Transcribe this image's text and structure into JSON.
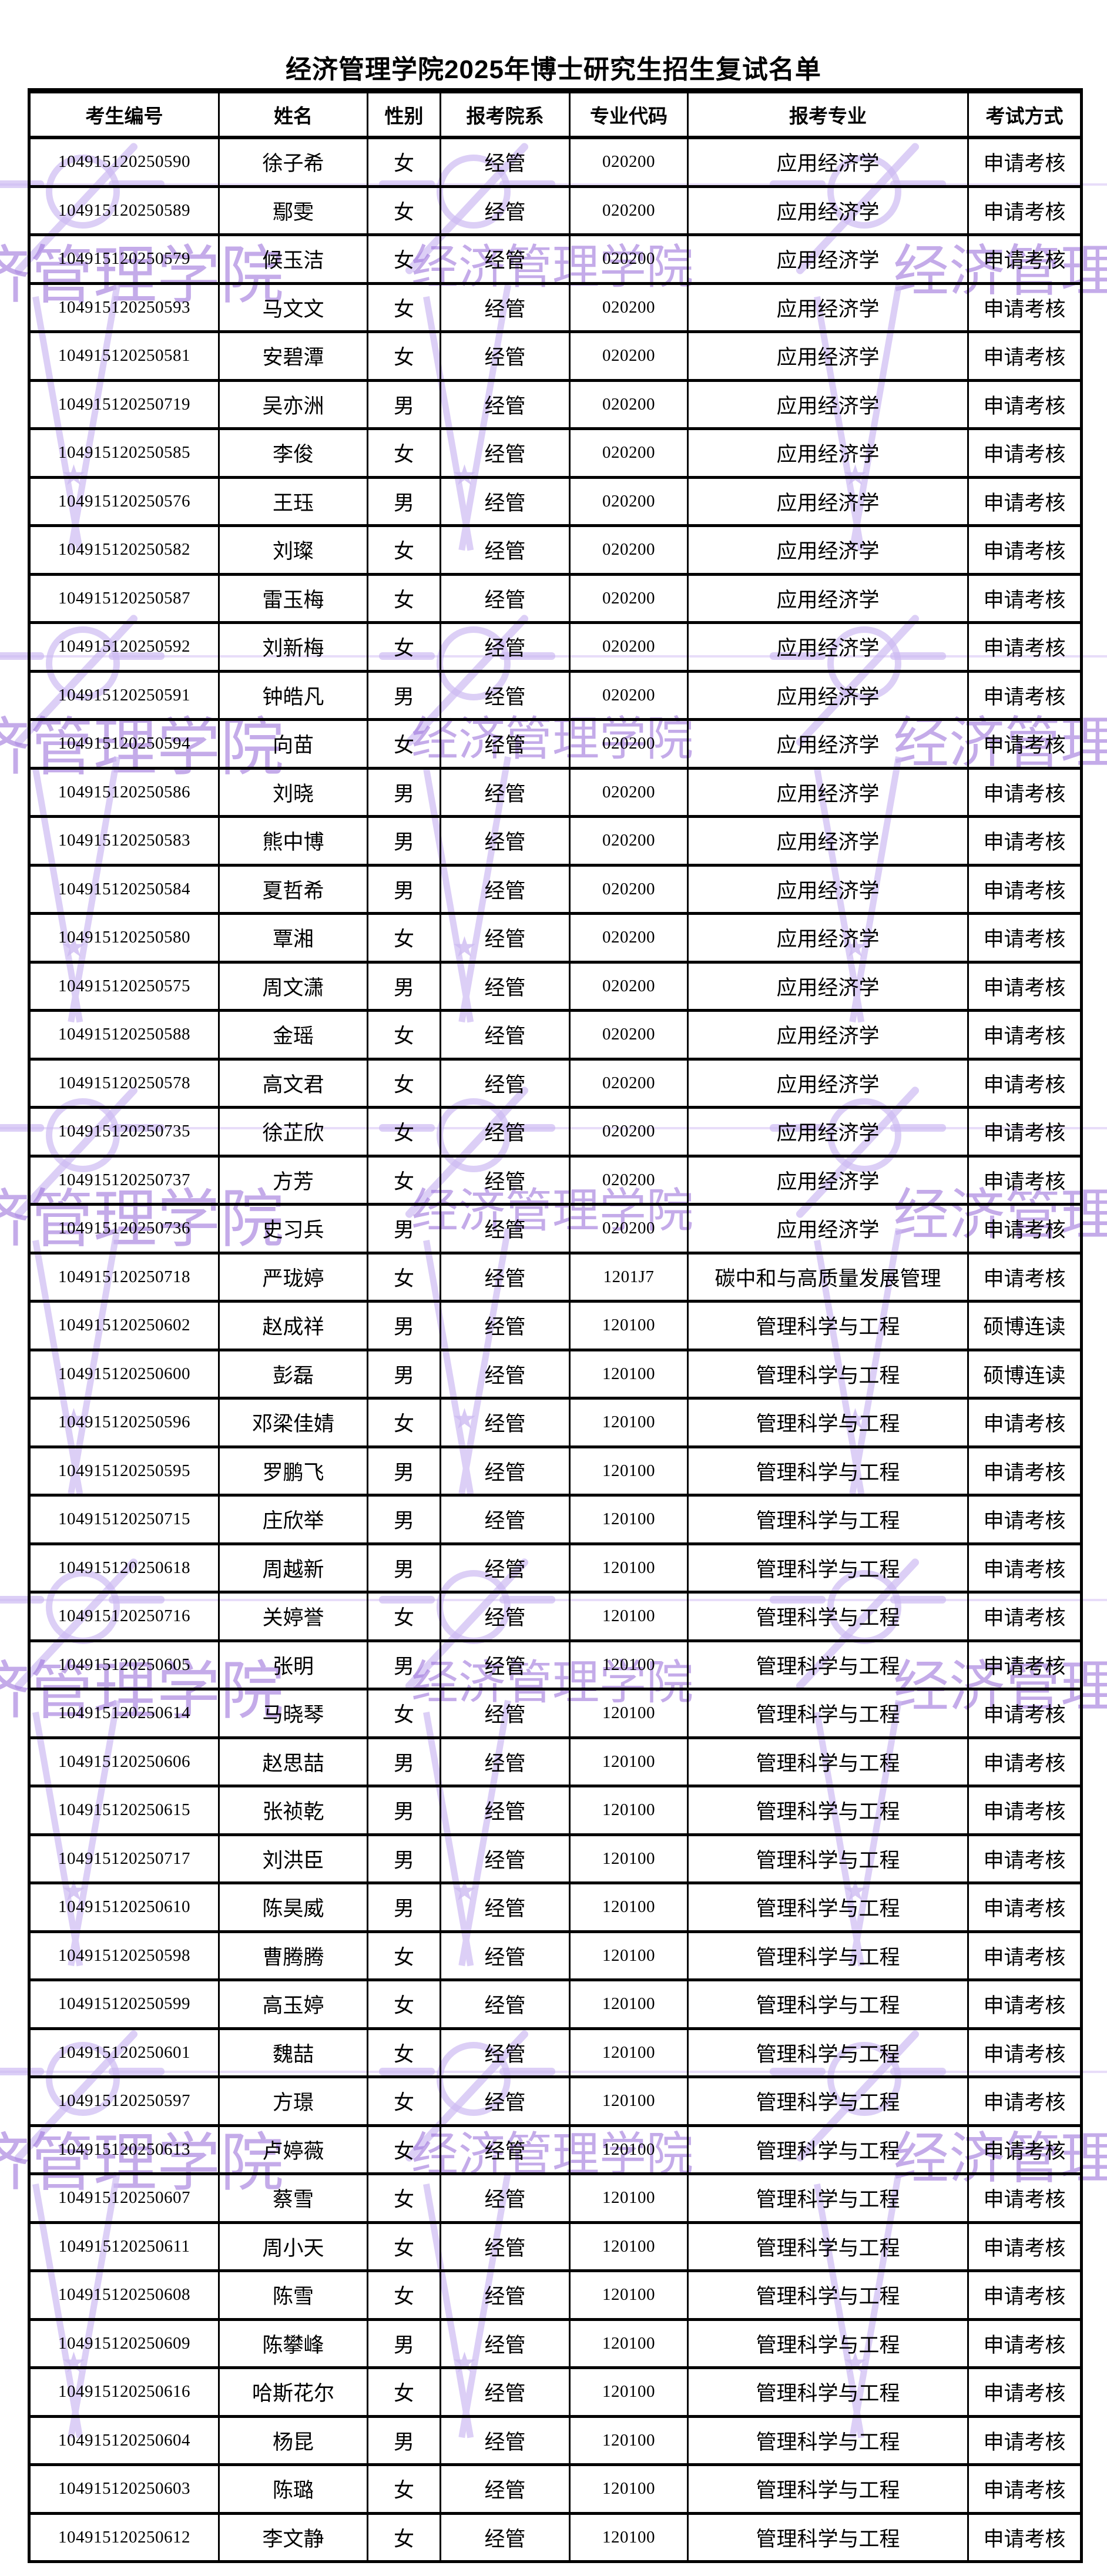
{
  "title": "经济管理学院2025年博士研究生招生复试名单",
  "table": {
    "columns": [
      "考生编号",
      "姓名",
      "性别",
      "报考院系",
      "专业代码",
      "报考专业",
      "考试方式"
    ],
    "rows": [
      [
        "104915120250590",
        "徐子希",
        "女",
        "经管",
        "020200",
        "应用经济学",
        "申请考核"
      ],
      [
        "104915120250589",
        "鄢雯",
        "女",
        "经管",
        "020200",
        "应用经济学",
        "申请考核"
      ],
      [
        "104915120250579",
        "候玉洁",
        "女",
        "经管",
        "020200",
        "应用经济学",
        "申请考核"
      ],
      [
        "104915120250593",
        "马文文",
        "女",
        "经管",
        "020200",
        "应用经济学",
        "申请考核"
      ],
      [
        "104915120250581",
        "安碧潭",
        "女",
        "经管",
        "020200",
        "应用经济学",
        "申请考核"
      ],
      [
        "104915120250719",
        "吴亦洲",
        "男",
        "经管",
        "020200",
        "应用经济学",
        "申请考核"
      ],
      [
        "104915120250585",
        "李俊",
        "女",
        "经管",
        "020200",
        "应用经济学",
        "申请考核"
      ],
      [
        "104915120250576",
        "王珏",
        "男",
        "经管",
        "020200",
        "应用经济学",
        "申请考核"
      ],
      [
        "104915120250582",
        "刘璨",
        "女",
        "经管",
        "020200",
        "应用经济学",
        "申请考核"
      ],
      [
        "104915120250587",
        "雷玉梅",
        "女",
        "经管",
        "020200",
        "应用经济学",
        "申请考核"
      ],
      [
        "104915120250592",
        "刘新梅",
        "女",
        "经管",
        "020200",
        "应用经济学",
        "申请考核"
      ],
      [
        "104915120250591",
        "钟皓凡",
        "男",
        "经管",
        "020200",
        "应用经济学",
        "申请考核"
      ],
      [
        "104915120250594",
        "向苗",
        "女",
        "经管",
        "020200",
        "应用经济学",
        "申请考核"
      ],
      [
        "104915120250586",
        "刘晓",
        "男",
        "经管",
        "020200",
        "应用经济学",
        "申请考核"
      ],
      [
        "104915120250583",
        "熊中博",
        "男",
        "经管",
        "020200",
        "应用经济学",
        "申请考核"
      ],
      [
        "104915120250584",
        "夏哲希",
        "男",
        "经管",
        "020200",
        "应用经济学",
        "申请考核"
      ],
      [
        "104915120250580",
        "覃湘",
        "女",
        "经管",
        "020200",
        "应用经济学",
        "申请考核"
      ],
      [
        "104915120250575",
        "周文潇",
        "男",
        "经管",
        "020200",
        "应用经济学",
        "申请考核"
      ],
      [
        "104915120250588",
        "金瑶",
        "女",
        "经管",
        "020200",
        "应用经济学",
        "申请考核"
      ],
      [
        "104915120250578",
        "高文君",
        "女",
        "经管",
        "020200",
        "应用经济学",
        "申请考核"
      ],
      [
        "104915120250735",
        "徐芷欣",
        "女",
        "经管",
        "020200",
        "应用经济学",
        "申请考核"
      ],
      [
        "104915120250737",
        "方芳",
        "女",
        "经管",
        "020200",
        "应用经济学",
        "申请考核"
      ],
      [
        "104915120250736",
        "史习兵",
        "男",
        "经管",
        "020200",
        "应用经济学",
        "申请考核"
      ],
      [
        "104915120250718",
        "严珑婷",
        "女",
        "经管",
        "1201J7",
        "碳中和与高质量发展管理",
        "申请考核"
      ],
      [
        "104915120250602",
        "赵成祥",
        "男",
        "经管",
        "120100",
        "管理科学与工程",
        "硕博连读"
      ],
      [
        "104915120250600",
        "彭磊",
        "男",
        "经管",
        "120100",
        "管理科学与工程",
        "硕博连读"
      ],
      [
        "104915120250596",
        "邓梁佳婧",
        "女",
        "经管",
        "120100",
        "管理科学与工程",
        "申请考核"
      ],
      [
        "104915120250595",
        "罗鹏飞",
        "男",
        "经管",
        "120100",
        "管理科学与工程",
        "申请考核"
      ],
      [
        "104915120250715",
        "庄欣举",
        "男",
        "经管",
        "120100",
        "管理科学与工程",
        "申请考核"
      ],
      [
        "104915120250618",
        "周越新",
        "男",
        "经管",
        "120100",
        "管理科学与工程",
        "申请考核"
      ],
      [
        "104915120250716",
        "关婷誉",
        "女",
        "经管",
        "120100",
        "管理科学与工程",
        "申请考核"
      ],
      [
        "104915120250605",
        "张明",
        "男",
        "经管",
        "120100",
        "管理科学与工程",
        "申请考核"
      ],
      [
        "104915120250614",
        "马晓琴",
        "女",
        "经管",
        "120100",
        "管理科学与工程",
        "申请考核"
      ],
      [
        "104915120250606",
        "赵思喆",
        "男",
        "经管",
        "120100",
        "管理科学与工程",
        "申请考核"
      ],
      [
        "104915120250615",
        "张祯乾",
        "男",
        "经管",
        "120100",
        "管理科学与工程",
        "申请考核"
      ],
      [
        "104915120250717",
        "刘洪臣",
        "男",
        "经管",
        "120100",
        "管理科学与工程",
        "申请考核"
      ],
      [
        "104915120250610",
        "陈昊威",
        "男",
        "经管",
        "120100",
        "管理科学与工程",
        "申请考核"
      ],
      [
        "104915120250598",
        "曹腾腾",
        "女",
        "经管",
        "120100",
        "管理科学与工程",
        "申请考核"
      ],
      [
        "104915120250599",
        "高玉婷",
        "女",
        "经管",
        "120100",
        "管理科学与工程",
        "申请考核"
      ],
      [
        "104915120250601",
        "魏喆",
        "女",
        "经管",
        "120100",
        "管理科学与工程",
        "申请考核"
      ],
      [
        "104915120250597",
        "方璟",
        "女",
        "经管",
        "120100",
        "管理科学与工程",
        "申请考核"
      ],
      [
        "104915120250613",
        "卢婷薇",
        "女",
        "经管",
        "120100",
        "管理科学与工程",
        "申请考核"
      ],
      [
        "104915120250607",
        "蔡雪",
        "女",
        "经管",
        "120100",
        "管理科学与工程",
        "申请考核"
      ],
      [
        "104915120250611",
        "周小天",
        "女",
        "经管",
        "120100",
        "管理科学与工程",
        "申请考核"
      ],
      [
        "104915120250608",
        "陈雪",
        "女",
        "经管",
        "120100",
        "管理科学与工程",
        "申请考核"
      ],
      [
        "104915120250609",
        "陈攀峰",
        "男",
        "经管",
        "120100",
        "管理科学与工程",
        "申请考核"
      ],
      [
        "104915120250616",
        "哈斯花尔",
        "女",
        "经管",
        "120100",
        "管理科学与工程",
        "申请考核"
      ],
      [
        "104915120250604",
        "杨昆",
        "男",
        "经管",
        "120100",
        "管理科学与工程",
        "申请考核"
      ],
      [
        "104915120250603",
        "陈璐",
        "女",
        "经管",
        "120100",
        "管理科学与工程",
        "申请考核"
      ],
      [
        "104915120250612",
        "李文静",
        "女",
        "经管",
        "120100",
        "管理科学与工程",
        "申请考核"
      ]
    ]
  },
  "watermark": {
    "text": "经济管理学院",
    "star_icon": "★",
    "text_color": "#8f5ed6",
    "shape_color": "#c3aeef",
    "line_color": "#d9c9f6"
  }
}
